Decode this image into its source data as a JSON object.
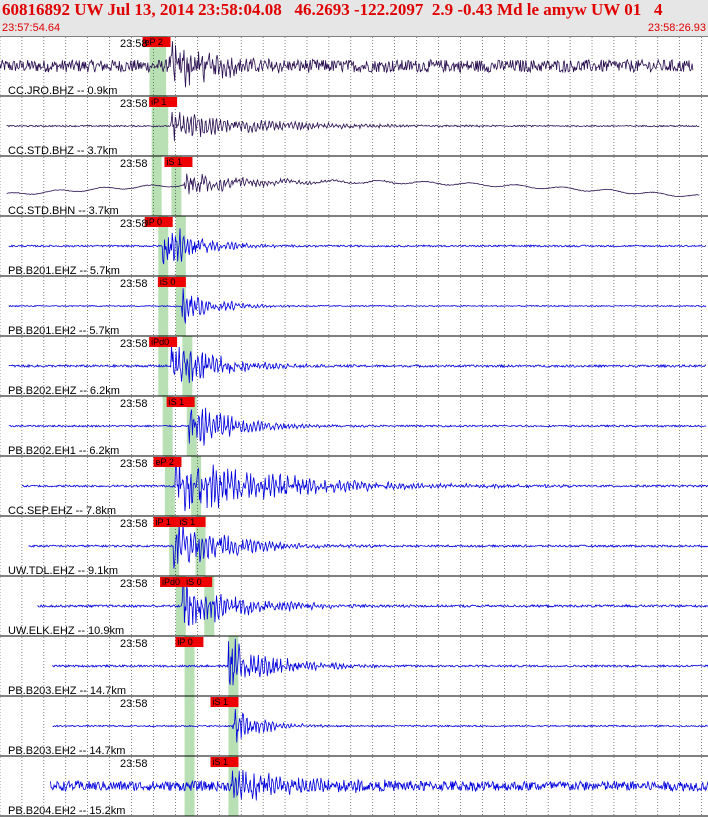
{
  "header": {
    "title": "60816892 UW Jul 13, 2014 23:58:04.08   46.2693 -122.2097  2.9 -0.43 Md le amyw UW 01   4",
    "start_time": "23:57:54.64",
    "end_time": "23:58:26.93"
  },
  "colors": {
    "header_text": "#e00000",
    "header_bg": "#e6e6e6",
    "trace_dark": "#2a1050",
    "trace_blue": "#0000dd",
    "pick_box": "#ee0000",
    "window_band": "#b9dfb4",
    "grid_line": "#000000"
  },
  "chart_data": {
    "type": "seismogram",
    "x_unit": "seconds",
    "x_range": [
      0,
      32.29
    ],
    "time_label": "23:58",
    "tick_seconds": [
      0,
      1,
      2,
      3,
      4,
      5,
      6,
      7,
      8,
      9,
      10,
      11,
      12,
      13,
      14,
      15,
      16,
      17,
      18,
      19,
      20,
      21,
      22,
      23,
      24,
      25,
      26,
      27,
      28,
      29,
      30,
      31,
      32
    ],
    "traces": [
      {
        "label": "CC.JRO.BHZ -- 0.9km",
        "color": "dark",
        "start": 0.0,
        "end": 31.6,
        "noise": 0.45,
        "arrival": 7.7,
        "amp": 0.8,
        "decay": 2.0,
        "trend": 0,
        "picks": [
          {
            "text": "eP 2",
            "t": 6.5
          }
        ],
        "bands": [
          7.0,
          7.3
        ]
      },
      {
        "label": "CC.STD.BHZ -- 3.7km",
        "color": "dark",
        "start": 0.3,
        "end": 31.9,
        "noise": 0.05,
        "arrival": 7.8,
        "amp": 0.5,
        "decay": 4.0,
        "trend": 0,
        "picks": [
          {
            "text": "iP 1",
            "t": 6.8
          }
        ],
        "bands": [
          7.1,
          7.4
        ]
      },
      {
        "label": "CC.STD.BHN -- 3.7km",
        "color": "dark",
        "start": 0.3,
        "end": 31.9,
        "noise": 0.02,
        "arrival": 8.4,
        "amp": 0.35,
        "decay": 3.0,
        "trend": 1,
        "picks": [
          {
            "text": "iS 1",
            "t": 7.5
          }
        ],
        "bands": [
          7.1,
          8.0
        ]
      },
      {
        "label": "PB.B201.EHZ -- 5.7km",
        "color": "blue",
        "start": 0.4,
        "end": 32.2,
        "noise": 0.06,
        "arrival": 7.4,
        "amp": 0.9,
        "decay": 1.5,
        "trend": 0,
        "picks": [
          {
            "text": "iP 0",
            "t": 6.6
          }
        ],
        "bands": [
          7.4,
          8.2
        ]
      },
      {
        "label": "PB.B201.EH2 -- 5.7km",
        "color": "blue",
        "start": 0.4,
        "end": 32.2,
        "noise": 0.04,
        "arrival": 8.3,
        "amp": 0.6,
        "decay": 1.5,
        "trend": 0,
        "picks": [
          {
            "text": "iS 0",
            "t": 7.2
          }
        ],
        "bands": [
          7.4,
          8.2
        ]
      },
      {
        "label": "PB.B202.EHZ -- 6.2km",
        "color": "blue",
        "start": 0.4,
        "end": 32.2,
        "noise": 0.08,
        "arrival": 7.8,
        "amp": 0.9,
        "decay": 2.0,
        "trend": 0,
        "picks": [
          {
            "text": "iPd0",
            "t": 6.8
          }
        ],
        "bands": [
          7.4,
          8.5
        ]
      },
      {
        "label": "PB.B202.EH1 -- 6.2km",
        "color": "blue",
        "start": 0.4,
        "end": 32.2,
        "noise": 0.06,
        "arrival": 8.6,
        "amp": 0.8,
        "decay": 2.0,
        "trend": 0,
        "picks": [
          {
            "text": "iS 1",
            "t": 7.6
          }
        ],
        "bands": [
          7.6,
          8.7
        ]
      },
      {
        "label": "CC.SEP.EHZ -- 7.8km",
        "color": "blue",
        "start": 1.0,
        "end": 32.4,
        "noise": 0.07,
        "arrival": 8.0,
        "amp": 1.0,
        "decay": 4.5,
        "trend": 0,
        "picks": [
          {
            "text": "eP 2",
            "t": 7.0
          }
        ],
        "bands": [
          7.7,
          8.9
        ]
      },
      {
        "label": "UW.TDL.EHZ -- 9.1km",
        "color": "blue",
        "start": 1.3,
        "end": 32.7,
        "noise": 0.07,
        "arrival": 7.9,
        "amp": 0.85,
        "decay": 2.5,
        "trend": 0,
        "picks": [
          {
            "text": "iP 1",
            "t": 7.0
          },
          {
            "text": "iS 1",
            "t": 8.1
          }
        ],
        "bands": [
          7.9,
          9.1
        ]
      },
      {
        "label": "UW.ELK.EHZ -- 10.9km",
        "color": "blue",
        "start": 1.7,
        "end": 33.0,
        "noise": 0.08,
        "arrival": 8.3,
        "amp": 0.9,
        "decay": 2.5,
        "trend": 0,
        "picks": [
          {
            "text": "iPd0",
            "t": 7.3
          },
          {
            "text": "iS 0",
            "t": 8.4
          }
        ],
        "bands": [
          8.2,
          9.5
        ]
      },
      {
        "label": "PB.B203.EHZ -- 14.7km",
        "color": "blue",
        "start": 2.4,
        "end": 33.0,
        "noise": 0.07,
        "arrival": 10.4,
        "amp": 0.9,
        "decay": 2.0,
        "trend": 0,
        "picks": [
          {
            "text": "iP 0",
            "t": 8.0
          }
        ],
        "bands": [
          8.6,
          10.6
        ]
      },
      {
        "label": "PB.B203.EH2 -- 14.7km",
        "color": "blue",
        "start": 2.4,
        "end": 33.0,
        "noise": 0.05,
        "arrival": 10.6,
        "amp": 0.7,
        "decay": 1.2,
        "trend": 0,
        "picks": [
          {
            "text": "iS 1",
            "t": 9.6
          }
        ],
        "bands": [
          8.6,
          10.6
        ]
      },
      {
        "label": "PB.B204.EH2 -- 15.2km",
        "color": "blue",
        "start": 2.3,
        "end": 32.8,
        "noise": 0.35,
        "arrival": 10.6,
        "amp": 0.6,
        "decay": 3.0,
        "trend": 0,
        "picks": [
          {
            "text": "iS 1",
            "t": 9.6
          }
        ],
        "bands": [
          8.6,
          10.6
        ]
      }
    ]
  }
}
